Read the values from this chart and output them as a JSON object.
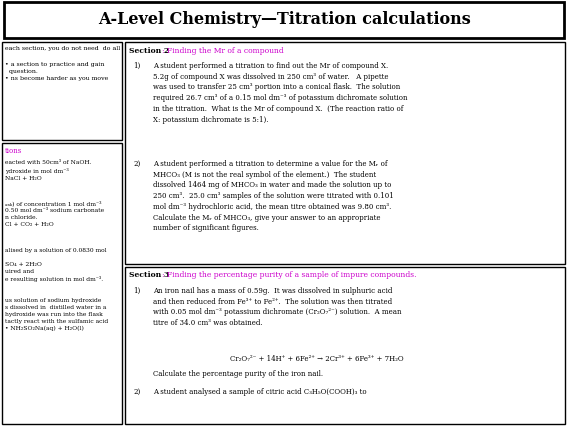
{
  "title": "A-Level Chemistry—Titration calculations",
  "bg_color": "#ffffff",
  "left_col2_heading_color": "#cc00cc",
  "section_highlight_color": "#cc00cc",
  "s2_q1": "A student performed a titration to find out the Mr of compound X.\n5.2g of compound X was dissolved in 250 cm³ of water.   A pipette\nwas used to transfer 25 cm³ portion into a conical flask.  The solution\nrequired 26.7 cm³ of a 0.15 mol dm⁻³ of potassium dichromate solution\nin the titration.  What is the Mr of compound X.  (The reaction ratio of\nX: potassium dichromate is 5:1).",
  "s2_q2": "A student performed a titration to determine a value for the Mᵣ of\nMHCO₃ (M is not the real symbol of the element.)  The student\ndissolved 1464 mg of MHCO₃ in water and made the solution up to\n250 cm³.  25.0 cm³ samples of the solution were titrated with 0.101\nmol dm⁻³ hydrochloric acid, the mean titre obtained was 9.80 cm³.\nCalculate the Mᵣ of MHCO₃, give your answer to an appropriate\nnumber of significant figures.",
  "s3_q1a": "An iron nail has a mass of 0.59g.  It was dissolved in sulphuric acid\nand then reduced from Fe³⁺ to Fe²⁺.  The solution was then titrated\nwith 0.05 mol dm⁻³ potassium dichromate (Cr₂O₇²⁻) solution.  A mean\ntitre of 34.0 cm³ was obtained.",
  "s3_q1_eq": "Cr₂O₇²⁻ + 14H⁺ + 6Fe²⁺ → 2Cr³⁺ + 6Fe³⁺ + 7H₂O",
  "s3_q1b": "Calculate the percentage purity of the iron nail.",
  "s3_q2": "A student analysed a sample of citric acid C₃H₅O(COOH)₃ to",
  "lc1_l1": "each section, you do not need  do all",
  "lc1_l2": "• a section to practice and gain\n  question.\n• ns become harder as you move",
  "lc2_head": "tions",
  "lc2_t1": "eacted with 50cm³ of NaOH.\nydroxide in mol dm⁻³\nNaCl + H₂O",
  "lc2_t2": "ₐₙₖ) of concentration 1 mol dm⁻³\n0.50 mol dm⁻³ sodium carbonate\nn chloride.\nCl + CO₂ + H₂O",
  "lc2_t3": "alised by a solution of 0.0830 mol",
  "lc2_t4": "SO₄ + 2H₂O\nuired and\ne resulting solution in mol dm⁻³.",
  "lc2_t5": "us solution of sodium hydroxide\ns dissolved in  distilled water in a\nhydroxide was run into the flask\ntactly react with the sulfamic acid\n• NH₂SO₂Na(aq) + H₂O(l)"
}
